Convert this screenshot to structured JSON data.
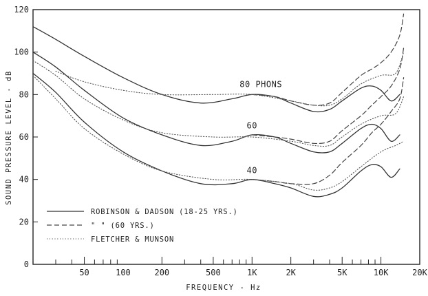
{
  "chart_data": {
    "type": "line",
    "title": "",
    "xlabel": "FREQUENCY - Hz",
    "ylabel": "SOUND PRESSURE LEVEL - dB",
    "x_scale": "log",
    "xlim": [
      20,
      20000
    ],
    "ylim": [
      0,
      120
    ],
    "x_ticks": [
      50,
      100,
      200,
      500,
      1000,
      2000,
      5000,
      10000,
      20000
    ],
    "x_tick_labels": [
      "50",
      "100",
      "200",
      "500",
      "1K",
      "2K",
      "5K",
      "10K",
      "20K"
    ],
    "y_ticks": [
      0,
      20,
      40,
      60,
      80,
      100,
      120
    ],
    "y_tick_labels": [
      "0",
      "20",
      "40",
      "60",
      "80",
      "100",
      "120"
    ],
    "grid": false,
    "annotations": [
      {
        "text": "80 PHONS",
        "x": 1000,
        "y": 83.5
      },
      {
        "text": "60",
        "x": 1000,
        "y": 64
      },
      {
        "text": "40",
        "x": 1000,
        "y": 43
      }
    ],
    "legend": {
      "placement": "bottom-left",
      "entries": [
        {
          "label": "ROBINSON & DADSON (18-25 YRS.)",
          "style": "solid"
        },
        {
          "label": "\"              \"         (60 YRS.)",
          "style": "dashed"
        },
        {
          "label": "FLETCHER & MUNSON",
          "style": "dotted"
        }
      ]
    },
    "series": [
      {
        "style": "solid",
        "level": 80,
        "x": [
          20,
          30,
          50,
          100,
          200,
          400,
          700,
          1000,
          1500,
          2000,
          3000,
          4000,
          5000,
          7000,
          8500,
          10000,
          12000,
          14000
        ],
        "y": [
          112,
          106,
          98,
          88,
          80,
          76,
          78,
          80,
          79,
          76,
          72,
          73,
          77,
          83,
          84,
          82,
          77,
          80
        ]
      },
      {
        "style": "solid",
        "level": 60,
        "x": [
          20,
          30,
          50,
          100,
          200,
          400,
          700,
          1000,
          1500,
          2000,
          3000,
          4000,
          5000,
          7000,
          8500,
          10000,
          12000,
          14000
        ],
        "y": [
          100,
          93,
          82,
          69,
          61,
          56,
          58,
          61,
          60,
          57,
          53,
          53,
          57,
          64,
          66,
          64,
          58,
          61
        ]
      },
      {
        "style": "solid",
        "level": 40,
        "x": [
          20,
          30,
          50,
          100,
          200,
          400,
          700,
          1000,
          1500,
          2000,
          3000,
          4000,
          5000,
          7000,
          8500,
          10000,
          12000,
          14000
        ],
        "y": [
          90,
          81,
          67,
          53,
          44,
          38,
          38,
          40,
          38,
          36,
          32,
          33,
          36,
          44,
          47,
          46,
          41,
          45
        ]
      },
      {
        "style": "dashed",
        "level": 80,
        "x": [
          1000,
          1500,
          2000,
          3000,
          4000,
          5000,
          7000,
          8500,
          10000,
          12000,
          14000,
          15000
        ],
        "y": [
          80,
          79,
          77,
          75,
          76,
          81,
          89,
          92,
          95,
          100,
          108,
          118
        ]
      },
      {
        "style": "dashed",
        "level": 60,
        "x": [
          1000,
          1500,
          2000,
          3000,
          4000,
          5000,
          7000,
          8500,
          10000,
          12000,
          14000,
          15000
        ],
        "y": [
          61,
          60,
          59,
          57,
          58,
          63,
          70,
          75,
          79,
          84,
          92,
          102
        ]
      },
      {
        "style": "dashed",
        "level": 40,
        "x": [
          1000,
          1500,
          2000,
          3000,
          4000,
          5000,
          7000,
          8500,
          10000,
          12000,
          14000,
          15000
        ],
        "y": [
          40,
          39,
          38,
          38,
          42,
          48,
          56,
          62,
          66,
          72,
          78,
          88
        ]
      },
      {
        "style": "dotted",
        "level": 80,
        "x": [
          30,
          50,
          100,
          200,
          500,
          1000,
          2000,
          3000,
          4000,
          5000,
          7000,
          10000,
          13000,
          15000
        ],
        "y": [
          91,
          86,
          82,
          80,
          80,
          80,
          77,
          75,
          75,
          78,
          85,
          89,
          90,
          100
        ]
      },
      {
        "style": "dotted",
        "level": 60,
        "x": [
          20,
          30,
          50,
          100,
          200,
          500,
          1000,
          2000,
          3000,
          4000,
          5000,
          7000,
          10000,
          13000,
          15000
        ],
        "y": [
          96,
          89,
          78,
          68,
          62,
          60,
          60,
          58,
          56,
          56,
          60,
          66,
          70,
          71,
          79
        ]
      },
      {
        "style": "dotted",
        "level": 40,
        "x": [
          20,
          30,
          50,
          100,
          200,
          500,
          1000,
          2000,
          3000,
          4000,
          5000,
          7000,
          10000,
          13000,
          15000
        ],
        "y": [
          89,
          78,
          64,
          52,
          44,
          40,
          40,
          38,
          35,
          36,
          39,
          46,
          53,
          56,
          58
        ]
      }
    ]
  }
}
